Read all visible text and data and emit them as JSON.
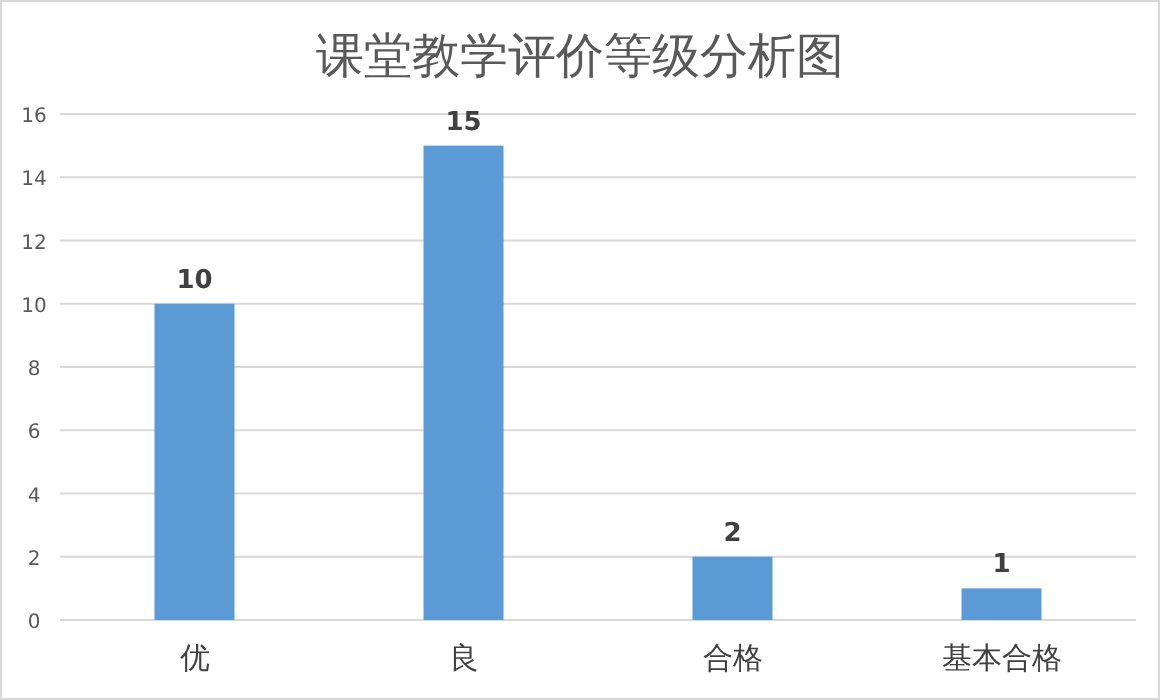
{
  "chart_data": {
    "type": "bar",
    "title": "课堂教学评价等级分析图",
    "categories": [
      "优",
      "良",
      "合格",
      "基本合格"
    ],
    "values": [
      10,
      15,
      2,
      1
    ],
    "color": "#5b9bd5",
    "ylim": [
      0,
      16
    ],
    "yticks": [
      0,
      2,
      4,
      6,
      8,
      10,
      12,
      14,
      16
    ],
    "grid": "y",
    "data_labels": true
  }
}
